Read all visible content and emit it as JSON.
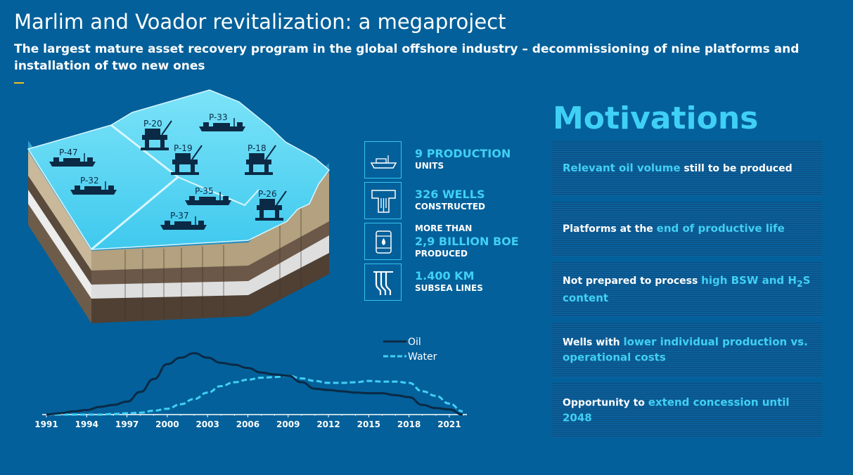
{
  "header": {
    "title": "Marlim and Voador revitalization: a megaproject",
    "subtitle": "The largest mature asset recovery program in the global offshore industry – decommissioning of nine platforms and installation of two new ones"
  },
  "platforms": [
    "P-47",
    "P-32",
    "P-20",
    "P-33",
    "P-19",
    "P-18",
    "P-35",
    "P-26",
    "P-37"
  ],
  "stats": [
    {
      "icon": "ship-icon",
      "line1": "9 PRODUCTION",
      "line2": "UNITS"
    },
    {
      "icon": "well-icon",
      "line1": "326 WELLS",
      "line2": "CONSTRUCTED"
    },
    {
      "icon": "oil-barrel-icon",
      "pre": "MORE THAN",
      "line1": "2,9 BILLION BOE",
      "line2": "PRODUCED"
    },
    {
      "icon": "subsea-lines-icon",
      "line1": "1.400 KM",
      "line2": "SUBSEA LINES"
    }
  ],
  "motivations": {
    "title": "Motivations",
    "items": [
      {
        "parts": [
          {
            "t": "Relevant oil volume",
            "hl": true
          },
          {
            "t": " still to be produced",
            "hl": false
          }
        ]
      },
      {
        "parts": [
          {
            "t": "Platforms at the ",
            "hl": false
          },
          {
            "t": "end of productive life",
            "hl": true
          }
        ]
      },
      {
        "parts": [
          {
            "t": "Not prepared to process ",
            "hl": false
          },
          {
            "t": "high BSW and H",
            "hl": true
          },
          {
            "t": "2",
            "hl": true,
            "sub": true
          },
          {
            "t": "S content",
            "hl": true
          }
        ]
      },
      {
        "parts": [
          {
            "t": "Wells with ",
            "hl": false
          },
          {
            "t": "lower individual production vs. operational costs",
            "hl": true
          }
        ]
      },
      {
        "parts": [
          {
            "t": "Opportunity to ",
            "hl": false
          },
          {
            "t": "extend concession until 2048",
            "hl": true
          }
        ]
      }
    ]
  },
  "chart_data": {
    "type": "line",
    "title": "",
    "xlabel": "",
    "ylabel": "",
    "x": [
      1991,
      1992,
      1993,
      1994,
      1995,
      1996,
      1997,
      1998,
      1999,
      2000,
      2001,
      2002,
      2003,
      2004,
      2005,
      2006,
      2007,
      2008,
      2009,
      2010,
      2011,
      2012,
      2013,
      2014,
      2015,
      2016,
      2017,
      2018,
      2019,
      2020,
      2021,
      2022
    ],
    "xticks": [
      1991,
      1994,
      1997,
      2000,
      2003,
      2006,
      2009,
      2012,
      2015,
      2018,
      2021
    ],
    "xlim": [
      1991,
      2022
    ],
    "ylim": [
      0,
      100
    ],
    "series": [
      {
        "name": "Oil",
        "color": "#0b2a45",
        "dashed": false,
        "values": [
          0,
          2,
          5,
          7,
          12,
          15,
          20,
          35,
          55,
          78,
          88,
          95,
          88,
          80,
          77,
          72,
          65,
          62,
          60,
          50,
          40,
          38,
          36,
          34,
          33,
          33,
          30,
          27,
          15,
          10,
          8,
          0
        ]
      },
      {
        "name": "Water",
        "color": "#40d0f5",
        "dashed": true,
        "values": [
          0,
          0,
          0,
          0,
          0,
          1,
          2,
          3,
          6,
          9,
          16,
          24,
          34,
          44,
          50,
          54,
          57,
          58,
          60,
          56,
          52,
          49,
          49,
          50,
          52,
          51,
          51,
          49,
          36,
          29,
          17,
          5
        ]
      }
    ]
  }
}
